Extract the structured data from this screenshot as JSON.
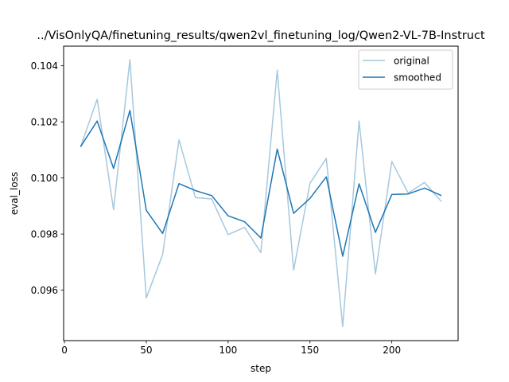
{
  "chart_data": {
    "type": "line",
    "title": "../VisOnlyQA/finetuning_results/qwen2vl_finetuning_log/Qwen2-VL-7B-Instruct",
    "xlabel": "step",
    "ylabel": "eval_loss",
    "xlim": [
      -0.5,
      240.5
    ],
    "ylim": [
      0.0942,
      0.1047
    ],
    "xticks": [
      0,
      50,
      100,
      150,
      200
    ],
    "xtick_labels": [
      "0",
      "50",
      "100",
      "150",
      "200"
    ],
    "yticks": [
      0.096,
      0.098,
      0.1,
      0.102,
      0.104
    ],
    "ytick_labels": [
      "0.096",
      "0.098",
      "0.100",
      "0.102",
      "0.104"
    ],
    "grid": false,
    "legend_position": "top-right",
    "x": [
      10,
      20,
      30,
      40,
      50,
      60,
      70,
      80,
      90,
      100,
      110,
      120,
      130,
      140,
      150,
      160,
      170,
      180,
      190,
      200,
      210,
      220,
      230
    ],
    "series": [
      {
        "name": "original",
        "color": "#a6c8de",
        "values": [
          0.10113,
          0.10281,
          0.09887,
          0.10422,
          0.09572,
          0.09727,
          0.10136,
          0.0993,
          0.09925,
          0.09798,
          0.09824,
          0.09734,
          0.10384,
          0.09671,
          0.09981,
          0.1007,
          0.0947,
          0.10203,
          0.09658,
          0.10059,
          0.09946,
          0.09984,
          0.09918
        ]
      },
      {
        "name": "smoothed",
        "color": "#1f77b4",
        "values": [
          0.10113,
          0.10203,
          0.10034,
          0.10241,
          0.09885,
          0.09802,
          0.0998,
          0.09955,
          0.09937,
          0.09865,
          0.09844,
          0.09786,
          0.10103,
          0.09874,
          0.09927,
          0.10004,
          0.09721,
          0.09979,
          0.09806,
          0.09941,
          0.09943,
          0.09964,
          0.09938
        ]
      }
    ]
  }
}
